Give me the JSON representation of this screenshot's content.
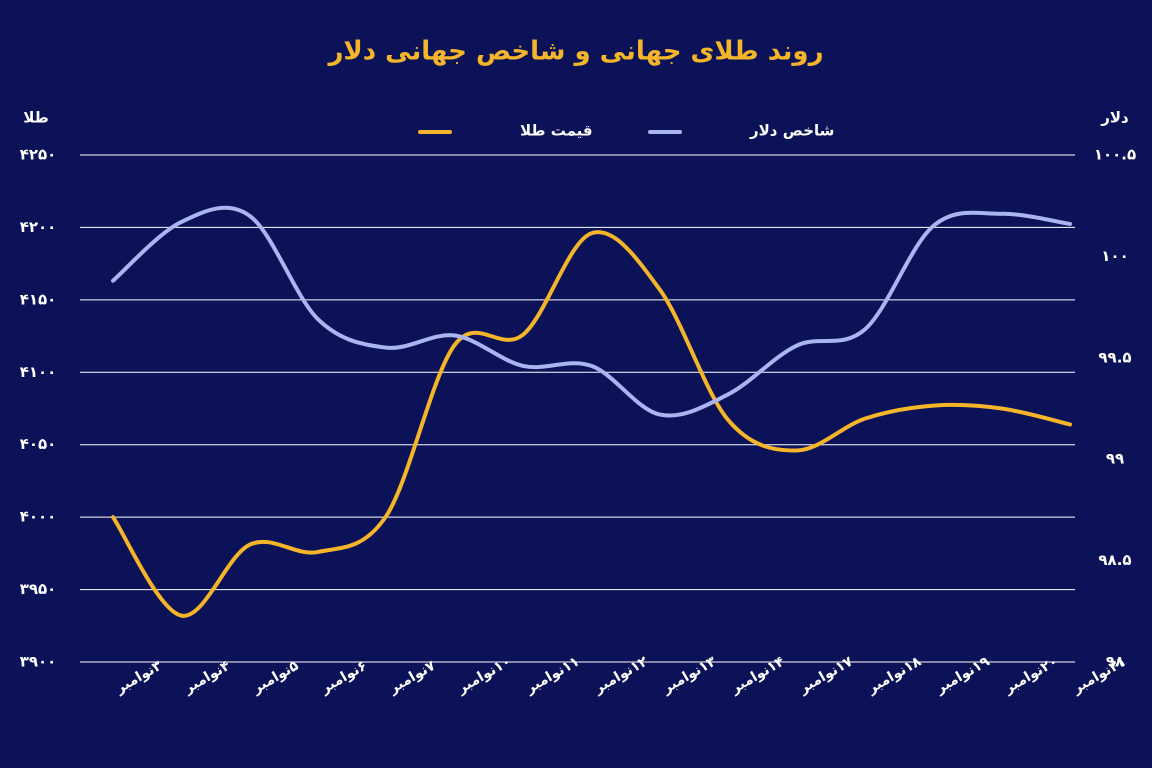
{
  "chart_data": {
    "type": "line",
    "title": "روند طلای جهانی و شاخص جهانی دلار",
    "y_label": "طلا",
    "y2_label": "دلار",
    "categories": [
      "۳نوامبر",
      "۴نوامبر",
      "۵نوامبر",
      "۶نوامبر",
      "۷نوامبر",
      "۱۰نوامبر",
      "۱۱نوامبر",
      "۱۲نوامبر",
      "۱۳نوامبر",
      "۱۴نوامبر",
      "۱۷نوامبر",
      "۱۸نوامبر",
      "۱۹نوامبر",
      "۲۰نوامبر",
      "۲۱نوامبر"
    ],
    "series": [
      {
        "name": "قیمت طلا",
        "color": "#f5b52a",
        "values": [
          4000,
          3932,
          3981,
          3976,
          4001,
          4119,
          4126,
          4196,
          4157,
          4067,
          4046,
          4068,
          4077,
          4075,
          4064
        ]
      },
      {
        "name": "شاخص دلار",
        "color": "#aab4f0",
        "axis": "y2",
        "values": [
          99.88,
          100.17,
          100.2,
          99.69,
          99.55,
          99.61,
          99.46,
          99.46,
          99.22,
          99.32,
          99.56,
          99.64,
          100.15,
          100.21,
          100.16
        ]
      }
    ],
    "ylim": [
      3900,
      4250
    ],
    "yticks": [
      {
        "value": 3900,
        "label": "۳۹۰۰"
      },
      {
        "value": 3950,
        "label": "۳۹۵۰"
      },
      {
        "value": 4000,
        "label": "۴۰۰۰"
      },
      {
        "value": 4050,
        "label": "۴۰۵۰"
      },
      {
        "value": 4100,
        "label": "۴۱۰۰"
      },
      {
        "value": 4150,
        "label": "۴۱۵۰"
      },
      {
        "value": 4200,
        "label": "۴۲۰۰"
      },
      {
        "value": 4250,
        "label": "۴۲۵۰"
      }
    ],
    "y2lim": [
      98,
      100.5
    ],
    "y2ticks": [
      {
        "value": 98,
        "label": "۹۸"
      },
      {
        "value": 98.5,
        "label": "۹۸.۵"
      },
      {
        "value": 99,
        "label": "۹۹"
      },
      {
        "value": 99.5,
        "label": "۹۹.۵"
      },
      {
        "value": 100,
        "label": "۱۰۰"
      },
      {
        "value": 100.5,
        "label": "۱۰۰.۵"
      }
    ],
    "grid": true
  }
}
